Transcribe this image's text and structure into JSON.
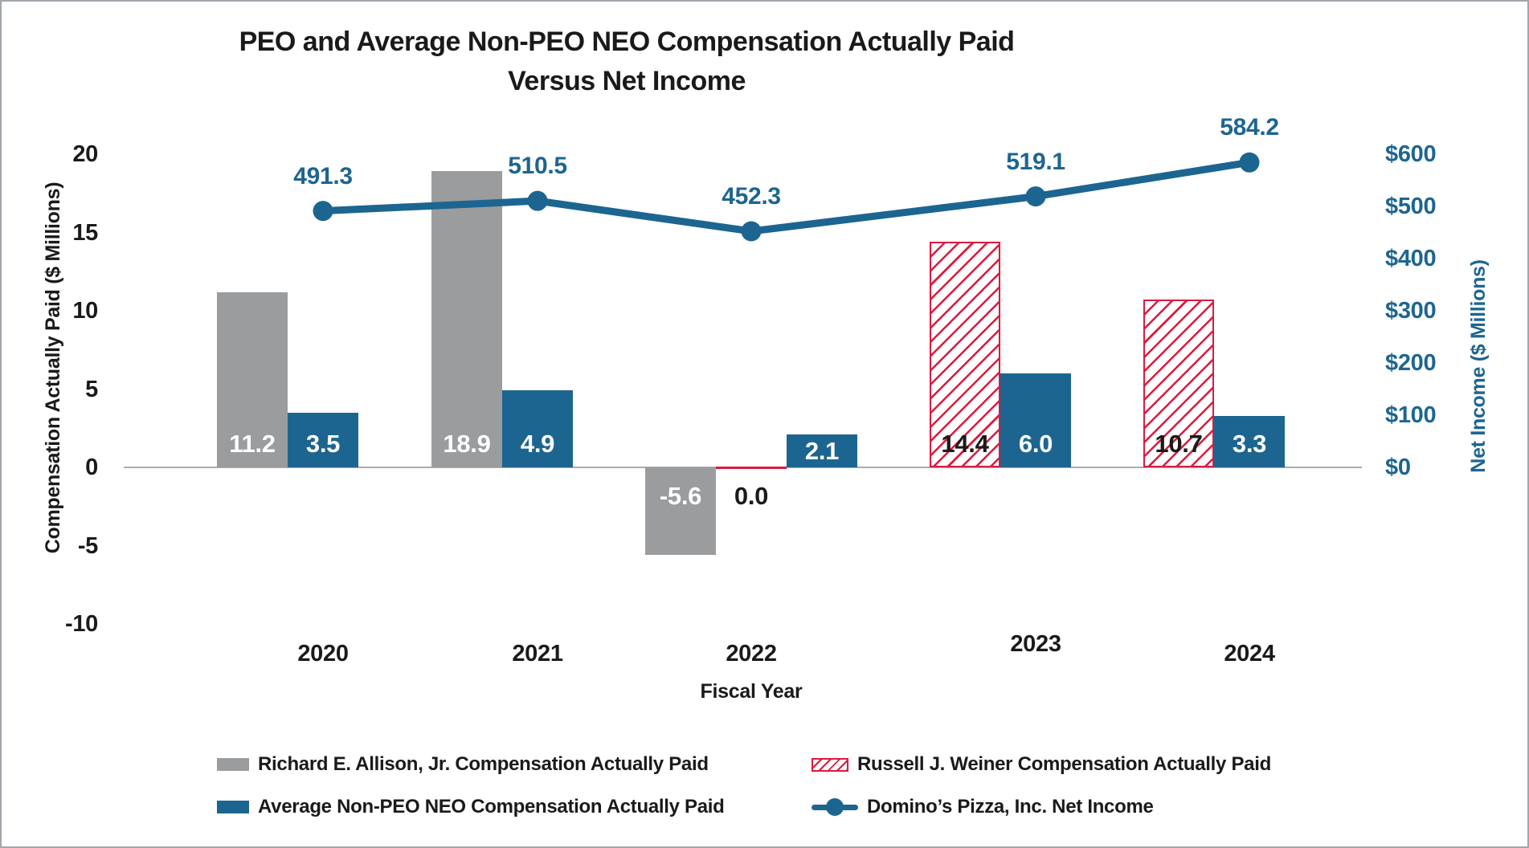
{
  "chart_data": {
    "type": "combo",
    "title": "PEO and Average Non-PEO NEO Compensation Actually Paid",
    "subtitle": "Versus Net Income",
    "xlabel": "Fiscal Year",
    "categories": [
      "2020",
      "2021",
      "2022",
      "2023",
      "2024"
    ],
    "left_axis": {
      "label": "Compensation Actually Paid ($ Millions)",
      "ticks": [
        20,
        15,
        10,
        5,
        0,
        -5,
        -10
      ],
      "min": -10,
      "max": 20
    },
    "right_axis": {
      "label": "Net Income ($ Millions)",
      "tick_labels": [
        "$600",
        "$500",
        "$400",
        "$300",
        "$200",
        "$100",
        "$0"
      ],
      "tick_values": [
        600,
        500,
        400,
        300,
        200,
        100,
        0
      ],
      "min": 0,
      "max": 600
    },
    "grid": false,
    "legend_position": "bottom-two-column",
    "series": [
      {
        "key": "allison",
        "name": "Richard E. Allison, Jr. Compensation Actually Paid",
        "type": "bar",
        "style": "solid",
        "color": "#9A9C9E",
        "label_color": "#FFFFFF",
        "values": [
          11.2,
          18.9,
          -5.6,
          null,
          null
        ]
      },
      {
        "key": "weiner",
        "name": "Russell J. Weiner Compensation Actually Paid",
        "type": "bar",
        "style": "hatched",
        "color": "#DC1A3D",
        "label_color": "#1A1A1A",
        "values": [
          null,
          null,
          0.0,
          14.4,
          10.7
        ]
      },
      {
        "key": "avg-non-peo-neo",
        "name": "Average Non-PEO NEO Compensation Actually Paid",
        "type": "bar",
        "style": "solid",
        "color": "#1D6591",
        "label_color": "#FFFFFF",
        "values": [
          3.5,
          4.9,
          2.1,
          6.0,
          3.3
        ]
      },
      {
        "key": "net-income",
        "name": "Domino’s Pizza, Inc. Net Income",
        "type": "line",
        "color": "#1D6591",
        "values": [
          491.3,
          510.5,
          452.3,
          519.1,
          584.2
        ]
      }
    ]
  },
  "colors": {
    "gray": "#9A9C9E",
    "blue": "#1D6591",
    "red": "#DC1A3D",
    "baseline": "#AAACAE",
    "text": "#1A1A1A"
  }
}
